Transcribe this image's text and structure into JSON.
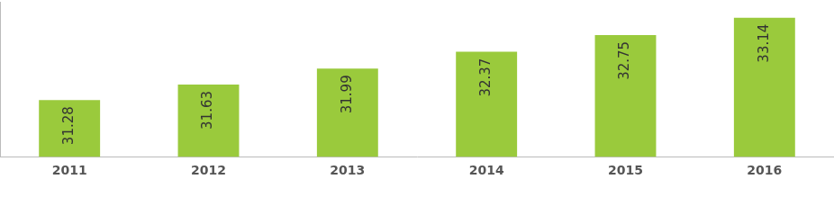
{
  "chart_data": {
    "type": "bar",
    "categories": [
      "2011",
      "2012",
      "2013",
      "2014",
      "2015",
      "2016"
    ],
    "values": [
      31.28,
      31.63,
      31.99,
      32.37,
      32.75,
      33.14
    ],
    "color": "#9aca3c",
    "ylim": [
      30,
      33.5
    ],
    "grid": false,
    "data_labels": true,
    "tick_labels": "x"
  }
}
